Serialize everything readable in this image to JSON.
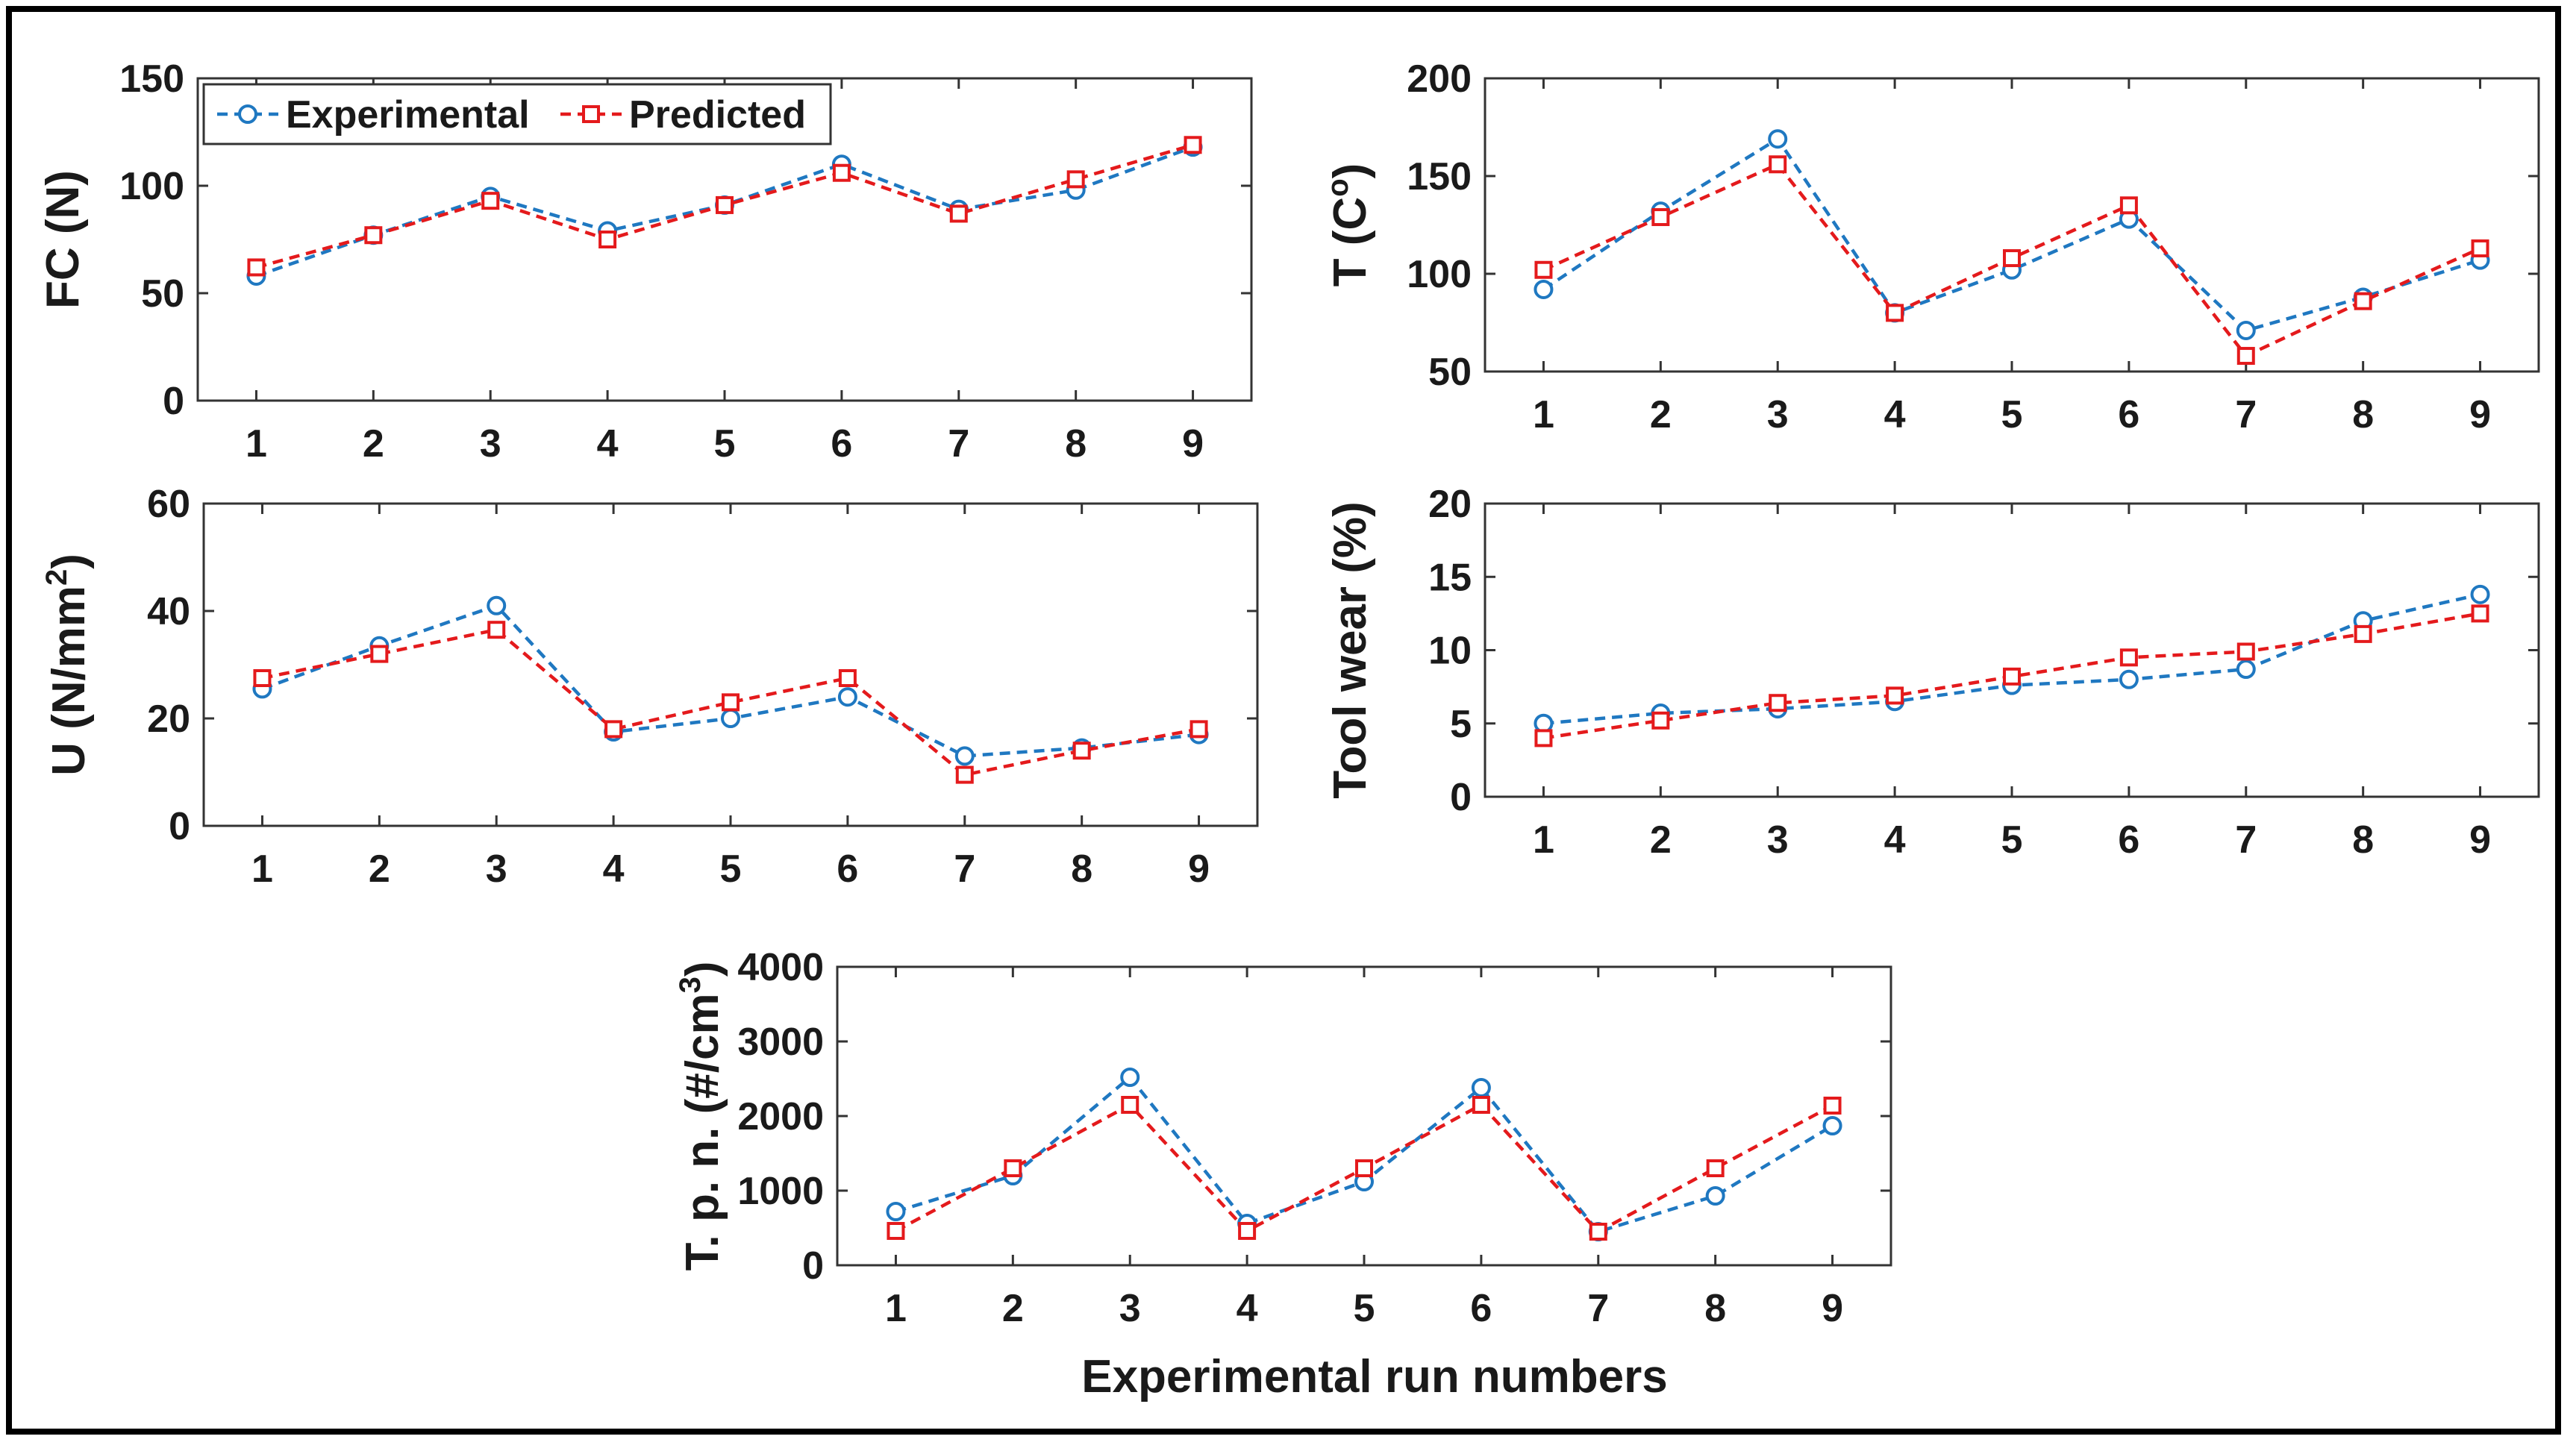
{
  "colors": {
    "experimental": "#1f78c1",
    "predicted": "#e41a1c",
    "axis": "#333333"
  },
  "x_label": "Experimental run numbers",
  "legend": [
    "Experimental",
    "Predicted"
  ],
  "chart_data": [
    {
      "id": "fc",
      "type": "line",
      "ylabel": "FC (N)",
      "x": [
        1,
        2,
        3,
        4,
        5,
        6,
        7,
        8,
        9
      ],
      "ylim": [
        0,
        150
      ],
      "yticks": [
        0,
        50,
        100,
        150
      ],
      "legend": "top-left",
      "series": [
        {
          "name": "Experimental",
          "values": [
            58,
            77,
            95,
            79,
            91,
            110,
            89,
            98,
            118
          ]
        },
        {
          "name": "Predicted",
          "values": [
            62,
            77,
            93,
            75,
            91,
            106,
            87,
            103,
            119
          ]
        }
      ]
    },
    {
      "id": "t",
      "type": "line",
      "ylabel": "T (C",
      "ylabel_sup": "o",
      "ylabel_end": ")",
      "x": [
        1,
        2,
        3,
        4,
        5,
        6,
        7,
        8,
        9
      ],
      "ylim": [
        50,
        200
      ],
      "yticks": [
        50,
        100,
        150,
        200
      ],
      "series": [
        {
          "name": "Experimental",
          "values": [
            92,
            132,
            169,
            80,
            102,
            128,
            71,
            88,
            107
          ]
        },
        {
          "name": "Predicted",
          "values": [
            102,
            129,
            156,
            80,
            108,
            135,
            58,
            86,
            113
          ]
        }
      ]
    },
    {
      "id": "u",
      "type": "line",
      "ylabel": "U (N/mm",
      "ylabel_sup": "2",
      "ylabel_end": ")",
      "x": [
        1,
        2,
        3,
        4,
        5,
        6,
        7,
        8,
        9
      ],
      "ylim": [
        0,
        60
      ],
      "yticks": [
        0,
        20,
        40,
        60
      ],
      "series": [
        {
          "name": "Experimental",
          "values": [
            25.5,
            33.5,
            41,
            17.5,
            20,
            24,
            13,
            14.5,
            17
          ]
        },
        {
          "name": "Predicted",
          "values": [
            27.5,
            32,
            36.5,
            18,
            23,
            27.5,
            9.5,
            14,
            18
          ]
        }
      ]
    },
    {
      "id": "toolwear",
      "type": "line",
      "ylabel": "Tool wear (%)",
      "x": [
        1,
        2,
        3,
        4,
        5,
        6,
        7,
        8,
        9
      ],
      "ylim": [
        0,
        20
      ],
      "yticks": [
        0,
        5,
        10,
        15,
        20
      ],
      "series": [
        {
          "name": "Experimental",
          "values": [
            5,
            5.7,
            6,
            6.5,
            7.6,
            8,
            8.7,
            12,
            13.8
          ]
        },
        {
          "name": "Predicted",
          "values": [
            4,
            5.2,
            6.4,
            6.9,
            8.2,
            9.5,
            9.9,
            11.1,
            12.5
          ]
        }
      ]
    },
    {
      "id": "tpn",
      "type": "line",
      "ylabel": "T. p. n. (#/cm",
      "ylabel_sup": "3",
      "ylabel_end": ")",
      "x": [
        1,
        2,
        3,
        4,
        5,
        6,
        7,
        8,
        9
      ],
      "ylim": [
        0,
        4000
      ],
      "yticks": [
        0,
        1000,
        2000,
        3000,
        4000
      ],
      "series": [
        {
          "name": "Experimental",
          "values": [
            720,
            1200,
            2520,
            560,
            1120,
            2380,
            450,
            930,
            1870
          ]
        },
        {
          "name": "Predicted",
          "values": [
            460,
            1300,
            2150,
            460,
            1300,
            2150,
            450,
            1300,
            2140
          ]
        }
      ]
    }
  ]
}
